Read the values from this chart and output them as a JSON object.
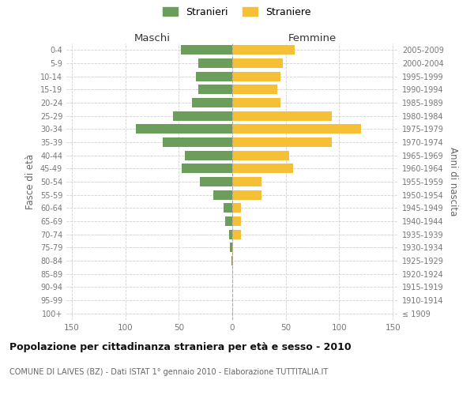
{
  "age_groups": [
    "100+",
    "95-99",
    "90-94",
    "85-89",
    "80-84",
    "75-79",
    "70-74",
    "65-69",
    "60-64",
    "55-59",
    "50-54",
    "45-49",
    "40-44",
    "35-39",
    "30-34",
    "25-29",
    "20-24",
    "15-19",
    "10-14",
    "5-9",
    "0-4"
  ],
  "birth_years": [
    "≤ 1909",
    "1910-1914",
    "1915-1919",
    "1920-1924",
    "1925-1929",
    "1930-1934",
    "1935-1939",
    "1940-1944",
    "1945-1949",
    "1950-1954",
    "1955-1959",
    "1960-1964",
    "1965-1969",
    "1970-1974",
    "1975-1979",
    "1980-1984",
    "1985-1989",
    "1990-1994",
    "1995-1999",
    "2000-2004",
    "2005-2009"
  ],
  "maschi": [
    0,
    0,
    0,
    0,
    1,
    2,
    3,
    7,
    8,
    18,
    30,
    47,
    44,
    65,
    90,
    55,
    38,
    32,
    34,
    32,
    48
  ],
  "femmine": [
    0,
    0,
    0,
    0,
    1,
    1,
    8,
    8,
    8,
    27,
    27,
    57,
    53,
    93,
    120,
    93,
    45,
    42,
    45,
    47,
    58
  ],
  "maschi_color": "#6a9e5a",
  "femmine_color": "#f5c035",
  "grid_color": "#cccccc",
  "title": "Popolazione per cittadinanza straniera per età e sesso - 2010",
  "subtitle": "COMUNE DI LAIVES (BZ) - Dati ISTAT 1° gennaio 2010 - Elaborazione TUTTITALIA.IT",
  "ylabel_left": "Fasce di età",
  "ylabel_right": "Anni di nascita",
  "xlabel_left": "Maschi",
  "xlabel_right": "Femmine",
  "legend_stranieri": "Stranieri",
  "legend_straniere": "Straniere",
  "xlim": 155
}
